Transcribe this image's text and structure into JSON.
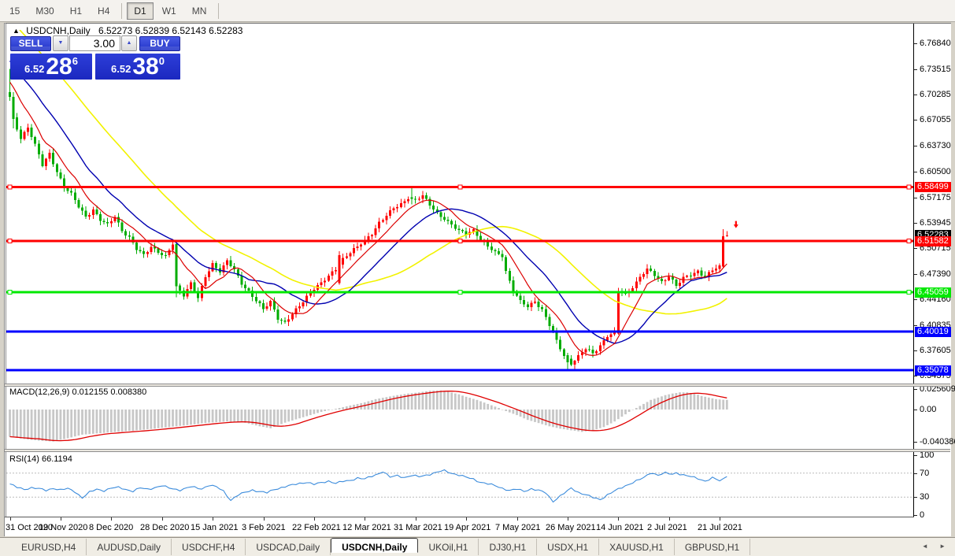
{
  "toolbar": {
    "timeframes": [
      "15",
      "M30",
      "H1",
      "H4",
      "D1",
      "W1",
      "MN"
    ],
    "active": "D1",
    "separators_after": [
      3,
      6
    ]
  },
  "header": {
    "collapse_icon": "▲",
    "title": "USDCNH,Daily",
    "ohlc_text": "6.52273 6.52839 6.52143 6.52283"
  },
  "trade_panel": {
    "sell_label": "SELL",
    "buy_label": "BUY",
    "volume_value": "3.00",
    "spinner_down_icon": "▼",
    "spinner_up_icon": "▲",
    "sell_quote": {
      "prefix": "6.52",
      "big": "28",
      "sup": "6"
    },
    "buy_quote": {
      "prefix": "6.52",
      "big": "38",
      "sup": "0"
    }
  },
  "indicators": {
    "macd_label": "MACD(12,26,9) 0.012155 0.008380",
    "rsi_label": "RSI(14) 66.1194"
  },
  "tab_bar": {
    "tabs": [
      "EURUSD,H4",
      "AUDUSD,Daily",
      "USDCHF,H4",
      "USDCAD,Daily",
      "USDCNH,Daily",
      "UKOil,H1",
      "DJ30,H1",
      "USDX,H1",
      "XAUUSD,H1",
      "GBPUSD,H1"
    ],
    "active_index": 4,
    "scroll_left_icon": "◄",
    "scroll_right_icon": "►"
  },
  "chart_data": {
    "type": "candlestick-with-indicators",
    "symbol": "USDCNH",
    "timeframe": "Daily",
    "ohlc_display": {
      "open": 6.52273,
      "high": 6.52839,
      "low": 6.52143,
      "close": 6.52283
    },
    "price_axis": {
      "top": 6.7857,
      "bottom": 6.3338,
      "ticks": [
        "6.76840",
        "6.73515",
        "6.70285",
        "6.67055",
        "6.63730",
        "6.60500",
        "6.57175",
        "6.53945",
        "6.50715",
        "6.47390",
        "6.44160",
        "6.40835",
        "6.37605",
        "6.34375"
      ]
    },
    "hlines": [
      {
        "price": 6.58499,
        "label": "6.58499",
        "color": "#FF0000",
        "handles": true
      },
      {
        "price": 6.51582,
        "label": "6.51582",
        "color": "#FF0000",
        "handles": true
      },
      {
        "price": 6.45059,
        "label": "6.45059",
        "color": "#00E800",
        "handles": true
      },
      {
        "price": 6.40019,
        "label": "6.40019",
        "color": "#0000FF",
        "handles": false
      },
      {
        "price": 6.35078,
        "label": "6.35078",
        "color": "#0000FF",
        "handles": false
      }
    ],
    "current_price_label": {
      "price": 6.52283,
      "label": "6.52283",
      "bg": "#000000"
    },
    "candles": {
      "count": 199,
      "first_open": 6.706,
      "up_color": "#FF0000",
      "down_color": "#00AC00",
      "close_anchors": [
        [
          0,
          6.7
        ],
        [
          1,
          6.672
        ],
        [
          3,
          6.648
        ],
        [
          5,
          6.662
        ],
        [
          7,
          6.638
        ],
        [
          9,
          6.612
        ],
        [
          11,
          6.628
        ],
        [
          13,
          6.605
        ],
        [
          15,
          6.585
        ],
        [
          17,
          6.575
        ],
        [
          19,
          6.56
        ],
        [
          21,
          6.548
        ],
        [
          23,
          6.556
        ],
        [
          25,
          6.542
        ],
        [
          27,
          6.536
        ],
        [
          29,
          6.548
        ],
        [
          31,
          6.53
        ],
        [
          33,
          6.52
        ],
        [
          35,
          6.505
        ],
        [
          37,
          6.498
        ],
        [
          39,
          6.51
        ],
        [
          41,
          6.502
        ],
        [
          43,
          6.495
        ],
        [
          45,
          6.512
        ],
        [
          46,
          6.458
        ],
        [
          48,
          6.448
        ],
        [
          50,
          6.462
        ],
        [
          52,
          6.442
        ],
        [
          54,
          6.47
        ],
        [
          56,
          6.487
        ],
        [
          58,
          6.478
        ],
        [
          60,
          6.49
        ],
        [
          62,
          6.478
        ],
        [
          64,
          6.462
        ],
        [
          66,
          6.452
        ],
        [
          68,
          6.44
        ],
        [
          70,
          6.428
        ],
        [
          72,
          6.438
        ],
        [
          74,
          6.418
        ],
        [
          76,
          6.412
        ],
        [
          78,
          6.422
        ],
        [
          80,
          6.432
        ],
        [
          82,
          6.445
        ],
        [
          84,
          6.456
        ],
        [
          86,
          6.462
        ],
        [
          88,
          6.47
        ],
        [
          90,
          6.48
        ],
        [
          92,
          6.494
        ],
        [
          94,
          6.502
        ],
        [
          96,
          6.508
        ],
        [
          98,
          6.516
        ],
        [
          100,
          6.526
        ],
        [
          102,
          6.54
        ],
        [
          104,
          6.548
        ],
        [
          106,
          6.557
        ],
        [
          108,
          6.563
        ],
        [
          110,
          6.572
        ],
        [
          112,
          6.568
        ],
        [
          114,
          6.573
        ],
        [
          116,
          6.562
        ],
        [
          118,
          6.552
        ],
        [
          120,
          6.545
        ],
        [
          122,
          6.536
        ],
        [
          124,
          6.528
        ],
        [
          126,
          6.526
        ],
        [
          128,
          6.531
        ],
        [
          130,
          6.518
        ],
        [
          132,
          6.508
        ],
        [
          134,
          6.501
        ],
        [
          136,
          6.498
        ],
        [
          137,
          6.478
        ],
        [
          139,
          6.452
        ],
        [
          141,
          6.438
        ],
        [
          143,
          6.432
        ],
        [
          145,
          6.44
        ],
        [
          147,
          6.428
        ],
        [
          149,
          6.408
        ],
        [
          151,
          6.388
        ],
        [
          153,
          6.37
        ],
        [
          155,
          6.36
        ],
        [
          157,
          6.368
        ],
        [
          159,
          6.378
        ],
        [
          161,
          6.372
        ],
        [
          163,
          6.383
        ],
        [
          165,
          6.395
        ],
        [
          167,
          6.398
        ],
        [
          168,
          6.452
        ],
        [
          170,
          6.448
        ],
        [
          172,
          6.458
        ],
        [
          174,
          6.47
        ],
        [
          176,
          6.479
        ],
        [
          178,
          6.472
        ],
        [
          180,
          6.464
        ],
        [
          182,
          6.472
        ],
        [
          184,
          6.458
        ],
        [
          186,
          6.468
        ],
        [
          188,
          6.473
        ],
        [
          190,
          6.478
        ],
        [
          192,
          6.47
        ],
        [
          194,
          6.478
        ],
        [
          196,
          6.483
        ],
        [
          197,
          6.522
        ],
        [
          198,
          6.5228
        ]
      ],
      "specials": {
        "0": [
          6.706,
          6.736,
          6.695,
          6.7
        ],
        "1": [
          6.7,
          6.706,
          6.66,
          6.672
        ],
        "46": [
          6.512,
          6.514,
          6.444,
          6.458
        ],
        "91": [
          6.462,
          6.503,
          6.46,
          6.498
        ],
        "111": [
          6.572,
          6.586,
          6.563,
          6.57
        ],
        "154": [
          6.37,
          6.373,
          6.3515,
          6.361
        ],
        "168": [
          6.398,
          6.456,
          6.396,
          6.452
        ],
        "197": [
          6.4832,
          6.531,
          6.482,
          6.522
        ],
        "198": [
          6.52273,
          6.52839,
          6.52143,
          6.52283
        ]
      }
    },
    "moving_averages": {
      "pre_bars": 55,
      "pre_slope": 0.0045,
      "lines": [
        {
          "window": 45,
          "color": "#F2F200",
          "width": 1.6
        },
        {
          "window": 21,
          "color": "#0000B0",
          "width": 1.4
        },
        {
          "window": 9,
          "color": "#DC0000",
          "width": 1.2
        }
      ]
    },
    "macd": {
      "params": "12,26,9",
      "readout": [
        0.012155,
        0.00838
      ],
      "top": 0.0286,
      "bottom": -0.0493,
      "axis_ticks": [
        {
          "v": 0.025609,
          "label": "0.025609"
        },
        {
          "v": 0.0,
          "label": "0.00"
        },
        {
          "v": -0.040386,
          "label": "-0.040386"
        }
      ],
      "bar_color": "#C7C7C7",
      "signal_color": "#E00000",
      "anchors": [
        [
          0,
          -0.034
        ],
        [
          4,
          -0.037
        ],
        [
          8,
          -0.039
        ],
        [
          12,
          -0.04
        ],
        [
          16,
          -0.036
        ],
        [
          20,
          -0.0315
        ],
        [
          24,
          -0.03
        ],
        [
          28,
          -0.0285
        ],
        [
          34,
          -0.0265
        ],
        [
          41,
          -0.0235
        ],
        [
          48,
          -0.02
        ],
        [
          55,
          -0.0165
        ],
        [
          60,
          -0.015
        ],
        [
          64,
          -0.0155
        ],
        [
          69,
          -0.021
        ],
        [
          72,
          -0.0235
        ],
        [
          76,
          -0.0165
        ],
        [
          80,
          -0.011
        ],
        [
          83,
          -0.007
        ],
        [
          86,
          -0.003
        ],
        [
          89,
          0.0
        ],
        [
          92,
          0.003
        ],
        [
          95,
          0.006
        ],
        [
          98,
          0.009
        ],
        [
          101,
          0.013
        ],
        [
          104,
          0.0155
        ],
        [
          107,
          0.018
        ],
        [
          110,
          0.02
        ],
        [
          113,
          0.0215
        ],
        [
          116,
          0.0235
        ],
        [
          119,
          0.024
        ],
        [
          121,
          0.0225
        ],
        [
          124,
          0.019
        ],
        [
          126,
          0.016
        ],
        [
          129,
          0.012
        ],
        [
          132,
          0.007
        ],
        [
          135,
          0.002
        ],
        [
          137,
          -0.002
        ],
        [
          140,
          -0.007
        ],
        [
          143,
          -0.013
        ],
        [
          146,
          -0.017
        ],
        [
          149,
          -0.021
        ],
        [
          152,
          -0.024
        ],
        [
          155,
          -0.026
        ],
        [
          158,
          -0.028
        ],
        [
          161,
          -0.026
        ],
        [
          164,
          -0.022
        ],
        [
          167,
          -0.015
        ],
        [
          169,
          -0.009
        ],
        [
          171,
          -0.003
        ],
        [
          173,
          0.002
        ],
        [
          175,
          0.007
        ],
        [
          177,
          0.012
        ],
        [
          179,
          0.015
        ],
        [
          181,
          0.018
        ],
        [
          183,
          0.02
        ],
        [
          185,
          0.0215
        ],
        [
          187,
          0.0215
        ],
        [
          189,
          0.02
        ],
        [
          191,
          0.017
        ],
        [
          193,
          0.015
        ],
        [
          195,
          0.013
        ],
        [
          197,
          0.0122
        ],
        [
          198,
          0.012155
        ]
      ]
    },
    "rsi": {
      "period": 14,
      "readout": 66.1194,
      "levels": [
        70,
        30
      ],
      "axis_ticks": [
        {
          "v": 100,
          "label": "100"
        },
        {
          "v": 70,
          "label": "70"
        },
        {
          "v": 30,
          "label": "30"
        },
        {
          "v": 0,
          "label": "0"
        }
      ],
      "line_color": "#3C8CDC",
      "anchors": [
        [
          0,
          52
        ],
        [
          2,
          46
        ],
        [
          4,
          43
        ],
        [
          6,
          46
        ],
        [
          8,
          44
        ],
        [
          10,
          41
        ],
        [
          12,
          45
        ],
        [
          14,
          42
        ],
        [
          16,
          44
        ],
        [
          18,
          39
        ],
        [
          20,
          29
        ],
        [
          22,
          38
        ],
        [
          24,
          43
        ],
        [
          26,
          41
        ],
        [
          28,
          45
        ],
        [
          30,
          46
        ],
        [
          32,
          43
        ],
        [
          34,
          40
        ],
        [
          36,
          45
        ],
        [
          38,
          43
        ],
        [
          40,
          46
        ],
        [
          42,
          49
        ],
        [
          44,
          45
        ],
        [
          47,
          42
        ],
        [
          50,
          47
        ],
        [
          53,
          44
        ],
        [
          55,
          50
        ],
        [
          57,
          47
        ],
        [
          59,
          40
        ],
        [
          61,
          25
        ],
        [
          63,
          33
        ],
        [
          65,
          38
        ],
        [
          67,
          42
        ],
        [
          69,
          39
        ],
        [
          71,
          37
        ],
        [
          73,
          43
        ],
        [
          75,
          46
        ],
        [
          78,
          50
        ],
        [
          80,
          53
        ],
        [
          82,
          55
        ],
        [
          84,
          51
        ],
        [
          86,
          54
        ],
        [
          88,
          57
        ],
        [
          90,
          53
        ],
        [
          92,
          56
        ],
        [
          94,
          58
        ],
        [
          96,
          62
        ],
        [
          98,
          60
        ],
        [
          100,
          65
        ],
        [
          102,
          70
        ],
        [
          103,
          73
        ],
        [
          105,
          63
        ],
        [
          107,
          66
        ],
        [
          109,
          63
        ],
        [
          111,
          66
        ],
        [
          113,
          64
        ],
        [
          115,
          67
        ],
        [
          117,
          70
        ],
        [
          119,
          73
        ],
        [
          120,
          74
        ],
        [
          122,
          70
        ],
        [
          124,
          67
        ],
        [
          126,
          63
        ],
        [
          128,
          60
        ],
        [
          130,
          55
        ],
        [
          132,
          52
        ],
        [
          134,
          49
        ],
        [
          136,
          45
        ],
        [
          138,
          41
        ],
        [
          140,
          43
        ],
        [
          142,
          40
        ],
        [
          144,
          44
        ],
        [
          146,
          41
        ],
        [
          148,
          37
        ],
        [
          150,
          23
        ],
        [
          152,
          32
        ],
        [
          154,
          40
        ],
        [
          155,
          45
        ],
        [
          157,
          38
        ],
        [
          159,
          34
        ],
        [
          161,
          29
        ],
        [
          163,
          26
        ],
        [
          165,
          34
        ],
        [
          167,
          40
        ],
        [
          169,
          46
        ],
        [
          171,
          52
        ],
        [
          173,
          57
        ],
        [
          175,
          62
        ],
        [
          177,
          71
        ],
        [
          179,
          67
        ],
        [
          181,
          70
        ],
        [
          183,
          68
        ],
        [
          184,
          71
        ],
        [
          186,
          67
        ],
        [
          188,
          64
        ],
        [
          190,
          61
        ],
        [
          192,
          57
        ],
        [
          194,
          62
        ],
        [
          196,
          57
        ],
        [
          197,
          60
        ],
        [
          198,
          66.1
        ]
      ]
    },
    "x_axis": {
      "dates": [
        "31 Oct 2020",
        "19 Nov 2020",
        "8 Dec 2020",
        "28 Dec 2020",
        "15 Jan 2021",
        "3 Feb 2021",
        "22 Feb 2021",
        "12 Mar 2021",
        "31 Mar 2021",
        "19 Apr 2021",
        "7 May 2021",
        "26 May 2021",
        "14 Jun 2021",
        "2 Jul 2021",
        "21 Jul 2021"
      ],
      "candles_per_tick": 14
    },
    "marker": {
      "type": "sell-arrow",
      "color": "#FF0000",
      "price": 6.5335,
      "index": 200.5
    }
  }
}
